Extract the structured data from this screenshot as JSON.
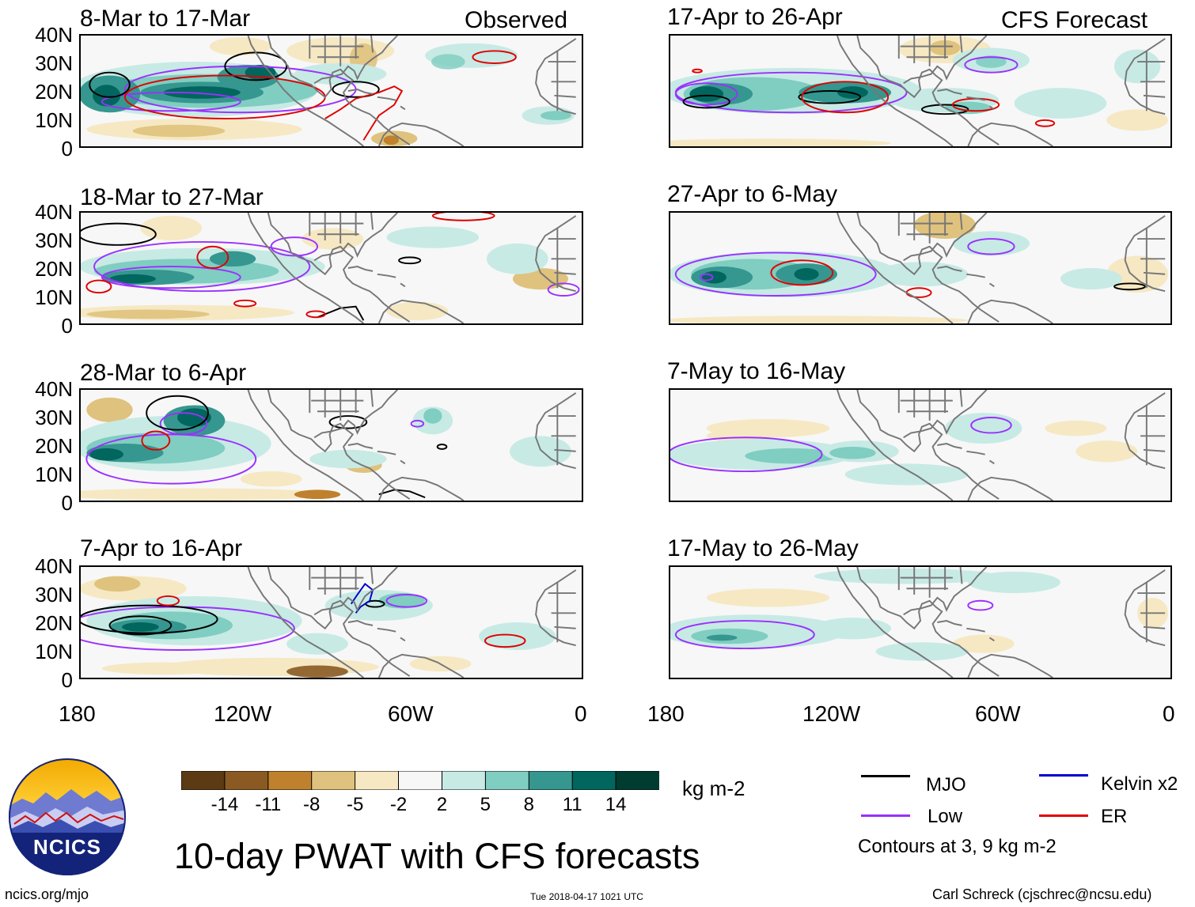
{
  "colors": {
    "brown_dark": "#5b3a14",
    "brown_mid": "#8a5a22",
    "brown": "#bf812d",
    "tan": "#dfc27d",
    "tan_light": "#f6e8c3",
    "neutral": "#f7f7f7",
    "teal_light": "#c7eae5",
    "teal": "#80cdc1",
    "teal_mid": "#35978f",
    "teal_dark": "#01665e",
    "teal_darkest": "#003c30",
    "mjo": "#000000",
    "low": "#9b30ff",
    "kelvin": "#0000cd",
    "er": "#e00000"
  },
  "panels": [
    {
      "id": "p1",
      "title": "8-Mar to 17-Mar",
      "tag": "Observed"
    },
    {
      "id": "p2",
      "title": "18-Mar to 27-Mar"
    },
    {
      "id": "p3",
      "title": "28-Mar to 6-Apr"
    },
    {
      "id": "p4",
      "title": "7-Apr to 16-Apr"
    },
    {
      "id": "p5",
      "title": "17-Apr to 26-Apr",
      "tag": "CFS Forecast"
    },
    {
      "id": "p6",
      "title": "27-Apr to 6-May"
    },
    {
      "id": "p7",
      "title": "7-May to 16-May"
    },
    {
      "id": "p8",
      "title": "17-May to 26-May"
    }
  ],
  "axes": {
    "lat_labels": [
      "40N",
      "30N",
      "20N",
      "10N",
      "0"
    ],
    "lon_labels": [
      "180",
      "120W",
      "60W",
      "0"
    ]
  },
  "colorbar": {
    "ticks": [
      "-14",
      "-11",
      "-8",
      "-5",
      "-2",
      "2",
      "5",
      "8",
      "11",
      "14"
    ],
    "units": "kg m-2"
  },
  "legend": {
    "items": [
      {
        "label": "MJO"
      },
      {
        "label": "Kelvin x2"
      },
      {
        "label": "Low"
      },
      {
        "label": "ER"
      }
    ],
    "note": "Contours at 3, 9 kg m-2"
  },
  "logo": {
    "text": "NCICS"
  },
  "main_title": "10-day PWAT with CFS forecasts",
  "footer": {
    "left": "ncics.org/mjo",
    "center": "Tue 2018-04-17 1021 UTC",
    "right": "Carl Schreck (cjschrec@ncsu.edu)"
  }
}
